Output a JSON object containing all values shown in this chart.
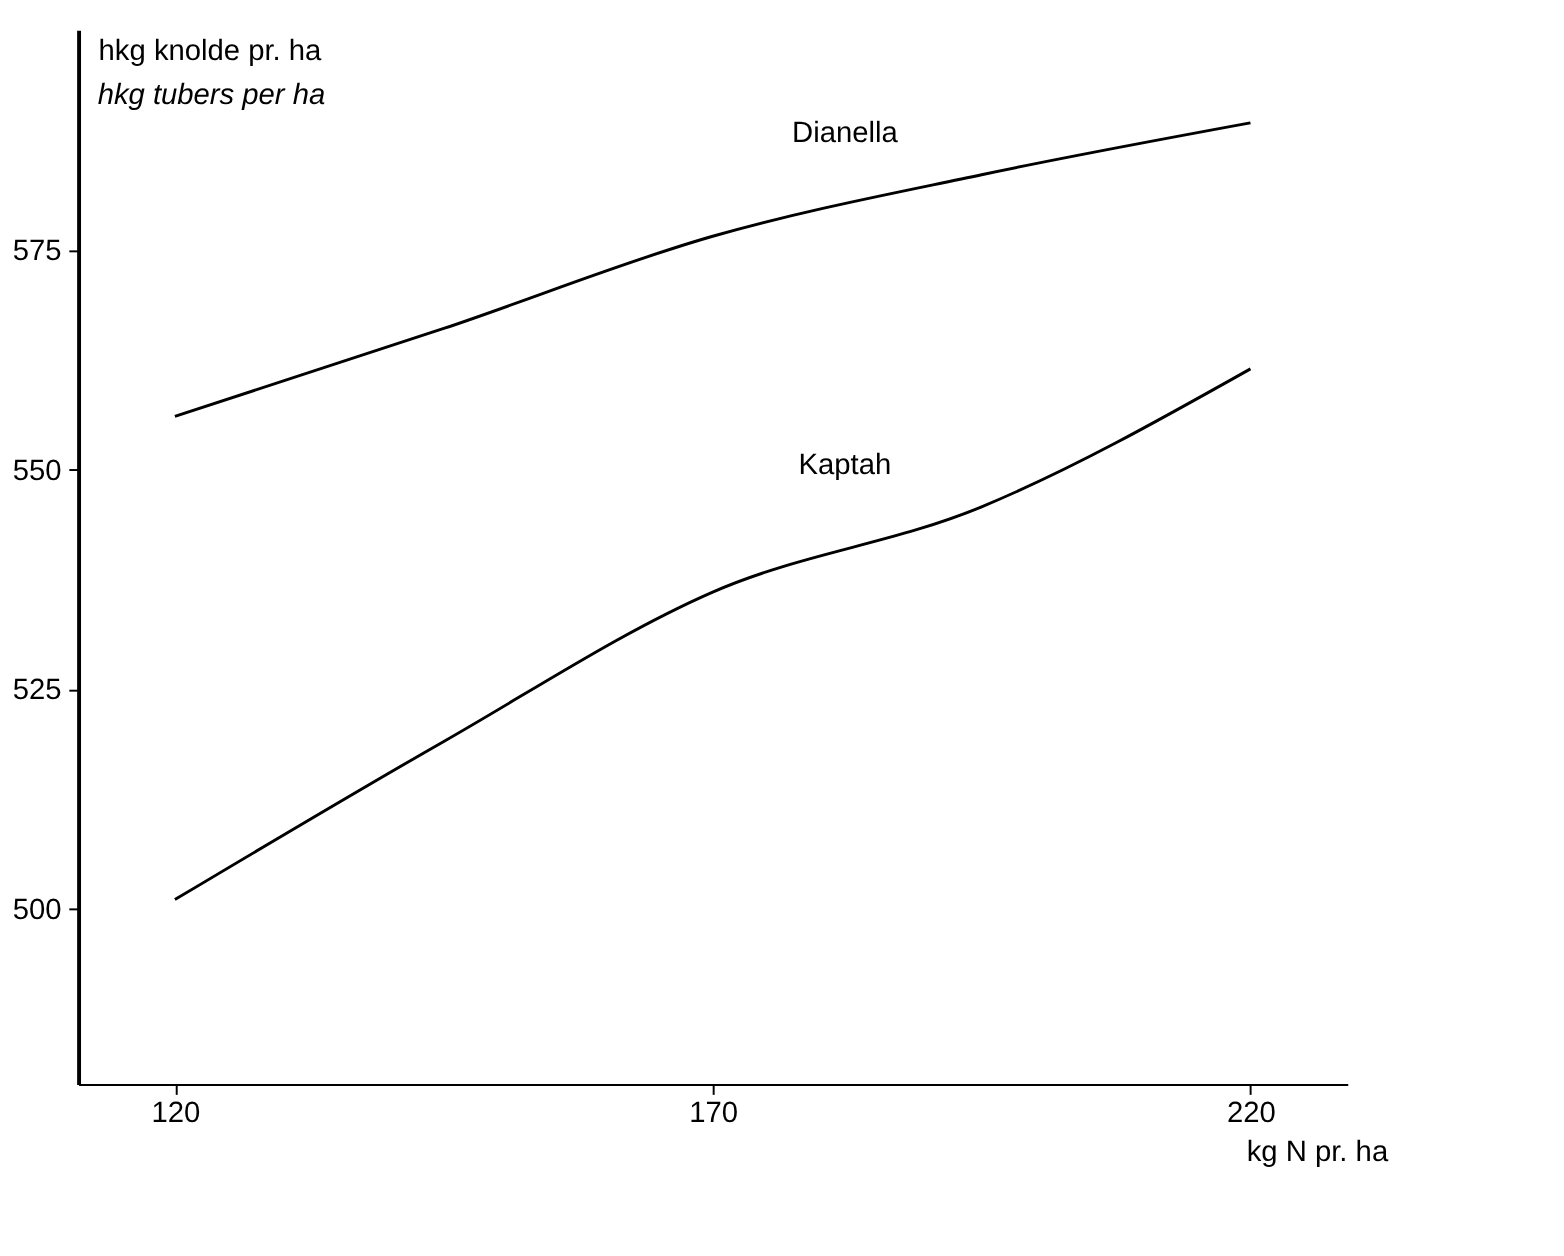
{
  "chart_data": {
    "type": "line",
    "ylabel": "hkg knolde pr. ha",
    "annotations": [
      "hkg tubers per ha"
    ],
    "xlabel": "kg N pr. ha",
    "x": [
      120,
      145,
      170,
      195,
      220
    ],
    "series": [
      {
        "name": "Dianella",
        "color": "#000000",
        "values": [
          556,
          566,
          576.5,
          583.5,
          589.4
        ]
      },
      {
        "name": "Kaptah",
        "color": "#000000",
        "values": [
          501,
          519,
          536,
          545.7,
          561.4
        ]
      }
    ],
    "xlim": [
      111,
      229
    ],
    "xticks": [
      120,
      170,
      220
    ],
    "ylim": [
      480,
      600
    ],
    "yticks": [
      500,
      525,
      550,
      575
    ],
    "grid": false,
    "marker": "none",
    "line_style": "solid"
  }
}
